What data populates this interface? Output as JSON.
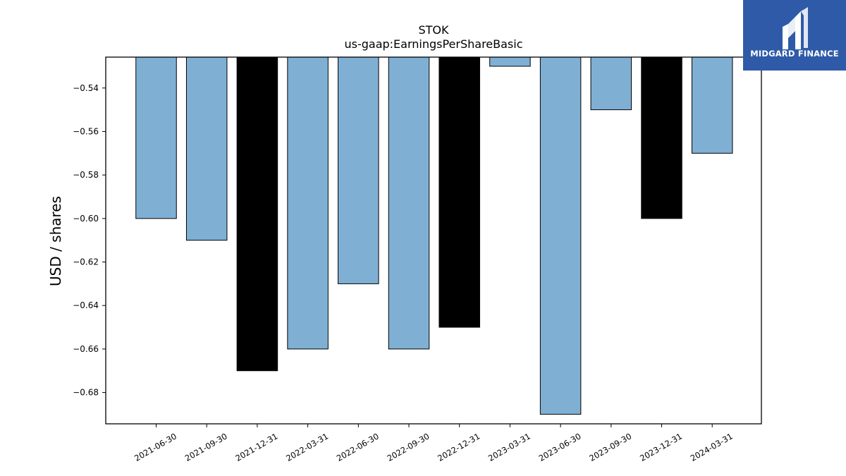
{
  "chart_data": {
    "type": "bar",
    "title": "STOK",
    "subtitle": "us-gaap:EarningsPerShareBasic",
    "xlabel": "",
    "ylabel": "USD / shares",
    "categories": [
      "2021-06-30",
      "2021-09-30",
      "2021-12-31",
      "2022-03-31",
      "2022-06-30",
      "2022-09-30",
      "2022-12-31",
      "2023-03-31",
      "2023-06-30",
      "2023-09-30",
      "2023-12-31",
      "2024-03-31"
    ],
    "values": [
      -0.6,
      -0.61,
      -0.67,
      -0.66,
      -0.63,
      -0.66,
      -0.65,
      -0.53,
      -0.69,
      -0.55,
      -0.6,
      -0.57
    ],
    "bar_colors": [
      "#7fb0d4",
      "#7fb0d4",
      "#000000",
      "#7fb0d4",
      "#7fb0d4",
      "#7fb0d4",
      "#000000",
      "#7fb0d4",
      "#7fb0d4",
      "#7fb0d4",
      "#000000",
      "#7fb0d4"
    ],
    "ylim": [
      -0.6944,
      -0.5258
    ],
    "yticks": [
      -0.54,
      -0.56,
      -0.58,
      -0.6,
      -0.62,
      -0.64,
      -0.66,
      -0.68
    ],
    "ytick_labels": [
      "−0.54",
      "−0.56",
      "−0.58",
      "−0.60",
      "−0.62",
      "−0.64",
      "−0.66",
      "−0.68"
    ],
    "grid": false,
    "legend": "none"
  },
  "logo": {
    "text": "MIDGARD FINANCE",
    "background": "#2f5aa8"
  }
}
